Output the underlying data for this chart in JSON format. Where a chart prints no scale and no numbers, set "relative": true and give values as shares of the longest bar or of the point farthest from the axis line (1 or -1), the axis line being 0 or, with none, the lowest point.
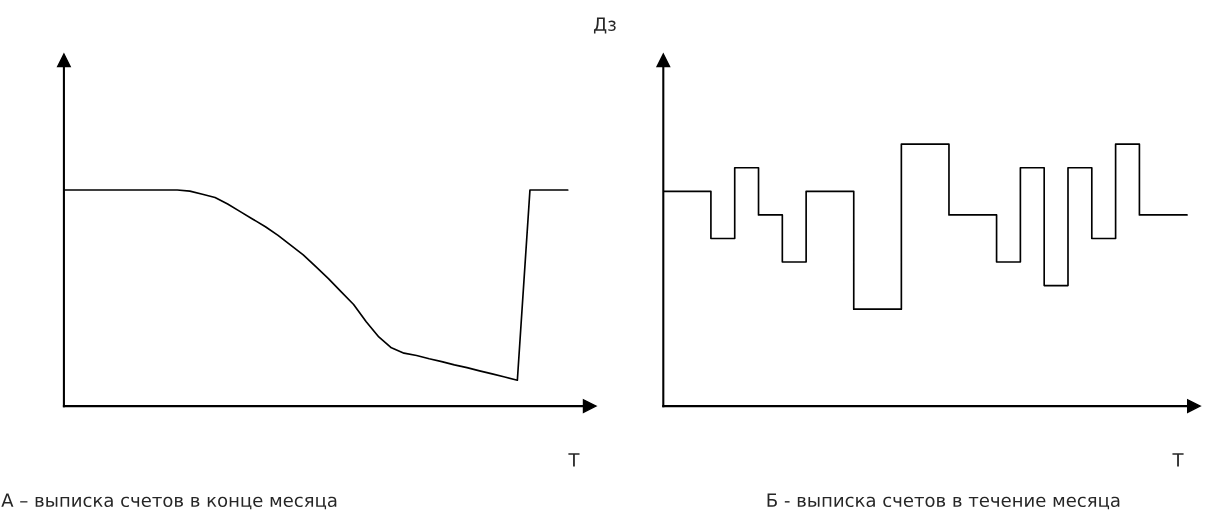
{
  "chart_data": [
    {
      "type": "line",
      "relative": true,
      "xlabel": "T",
      "categories": [
        null,
        null,
        null,
        null,
        null,
        null,
        null,
        null,
        null,
        null,
        null,
        null,
        null,
        null,
        null,
        null,
        null,
        null,
        null,
        null,
        null,
        null,
        null,
        null,
        null,
        null,
        null,
        null,
        null,
        null,
        null,
        null,
        null,
        null,
        null,
        null,
        null,
        null,
        null,
        null,
        null
      ],
      "series": [
        {
          "color": "#000000",
          "values": [
            1,
            1,
            1,
            1,
            1,
            1,
            1,
            1,
            1,
            1,
            0.995,
            0.98,
            0.965,
            0.935,
            0.9,
            0.865,
            0.83,
            0.79,
            0.745,
            0.7,
            0.645,
            0.59,
            0.53,
            0.47,
            0.39,
            0.32,
            0.27,
            0.245,
            0.234,
            0.219,
            0.206,
            0.191,
            0.178,
            0.163,
            0.149,
            0.135,
            0.12,
            1,
            1,
            1,
            1
          ]
        }
      ],
      "annotations": [
        "А – выписка счетов в конце месяца"
      ],
      "marker": "none",
      "line_style": "solid"
    },
    {
      "type": "step",
      "relative": true,
      "xlabel": "T",
      "ylabel": "Дз",
      "categories": [
        null,
        null,
        null,
        null,
        null,
        null,
        null,
        null,
        null,
        null,
        null,
        null,
        null,
        null,
        null,
        null,
        null,
        null,
        null,
        null,
        null,
        null,
        null
      ],
      "series": [
        {
          "color": "#000000",
          "values": [
            0.82,
            0.82,
            0.64,
            0.91,
            0.73,
            0.55,
            0.82,
            0.82,
            0.37,
            0.37,
            1,
            1,
            0.73,
            0.73,
            0.55,
            0.91,
            0.46,
            0.91,
            0.64,
            1,
            0.73,
            0.73,
            0.73
          ]
        }
      ],
      "annotations": [
        "Б - выписка счетов в течение месяца"
      ],
      "marker": "none",
      "line_style": "solid"
    }
  ]
}
